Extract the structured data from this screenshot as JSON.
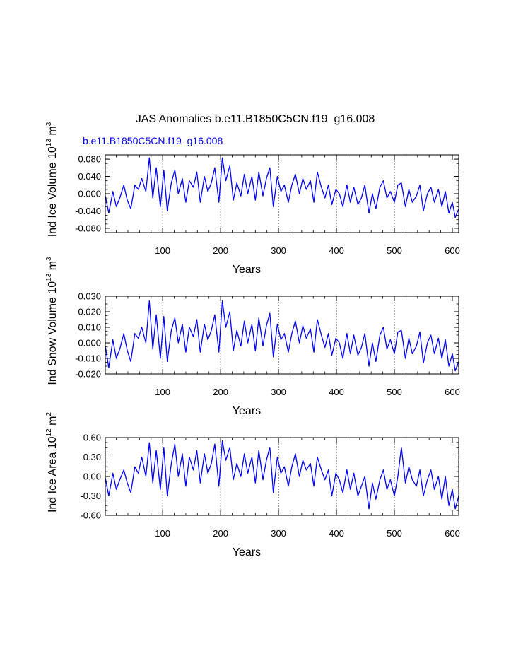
{
  "figure": {
    "title": "JAS Anomalies b.e11.B1850C5CN.f19_g16.008",
    "case_label": "b.e11.B1850C5CN.f19_g16.008",
    "line_color": "#0000ff",
    "grid_color": "#000000"
  },
  "chart_data": [
    {
      "type": "line",
      "name": "ice-volume",
      "title": "",
      "xlabel": "Years",
      "ylabel_base": "Ind Ice Volume 10",
      "ylabel_exp": "13",
      "ylabel_unit": " m",
      "ylabel_unit_exp": "3",
      "xlim": [
        1,
        611
      ],
      "ylim": [
        -0.09,
        0.09
      ],
      "xticks": [
        100,
        200,
        300,
        400,
        500,
        600
      ],
      "xtick_labels": [
        "100",
        "200",
        "300",
        "400",
        "500",
        "600"
      ],
      "yticks": [
        -0.08,
        -0.04,
        0.0,
        0.04,
        0.08
      ],
      "ytick_labels": [
        "-0.080",
        "-0.040",
        "0.000",
        "0.040",
        "0.080"
      ],
      "vgrid": [
        100,
        200,
        300,
        400,
        500
      ],
      "x": [
        1,
        7,
        14,
        20,
        26,
        33,
        39,
        45,
        52,
        58,
        64,
        71,
        77,
        83,
        89,
        96,
        102,
        108,
        115,
        121,
        127,
        134,
        140,
        146,
        153,
        159,
        165,
        172,
        178,
        184,
        190,
        197,
        203,
        209,
        216,
        222,
        228,
        235,
        241,
        247,
        254,
        260,
        266,
        273,
        279,
        285,
        291,
        298,
        304,
        310,
        317,
        323,
        329,
        336,
        342,
        348,
        355,
        361,
        367,
        374,
        380,
        386,
        392,
        399,
        405,
        411,
        418,
        424,
        430,
        437,
        443,
        449,
        456,
        462,
        468,
        475,
        481,
        487,
        493,
        500,
        506,
        512,
        519,
        525,
        531,
        538,
        544,
        550,
        557,
        563,
        569,
        576,
        582,
        588,
        594,
        600,
        605,
        611
      ],
      "values": [
        -0.005,
        -0.045,
        0.005,
        -0.03,
        -0.01,
        0.02,
        -0.015,
        -0.035,
        0.02,
        0.01,
        0.035,
        0.005,
        0.083,
        -0.01,
        0.06,
        -0.03,
        0.055,
        -0.04,
        0.025,
        0.055,
        0.0,
        0.035,
        -0.02,
        0.03,
        0.015,
        0.05,
        -0.02,
        0.04,
        0.005,
        0.025,
        0.06,
        -0.02,
        0.083,
        0.03,
        0.065,
        -0.015,
        0.025,
        -0.005,
        0.045,
        0.0,
        0.04,
        -0.015,
        0.05,
        -0.005,
        0.035,
        0.06,
        -0.03,
        0.04,
        0.005,
        0.02,
        -0.02,
        0.02,
        0.045,
        0.0,
        0.035,
        0.01,
        0.03,
        -0.02,
        0.05,
        0.015,
        -0.01,
        0.02,
        -0.025,
        0.01,
        0.0,
        -0.03,
        0.02,
        -0.02,
        0.015,
        -0.025,
        -0.01,
        0.02,
        -0.045,
        0.0,
        -0.035,
        0.015,
        0.03,
        -0.01,
        0.005,
        -0.02,
        0.02,
        0.025,
        -0.03,
        0.01,
        -0.02,
        -0.005,
        0.02,
        -0.04,
        0.0,
        0.015,
        -0.02,
        0.01,
        -0.03,
        0.005,
        -0.045,
        -0.02,
        -0.055,
        -0.035
      ]
    },
    {
      "type": "line",
      "name": "snow-volume",
      "title": "",
      "xlabel": "Years",
      "ylabel_base": "Ind Snow Volume 10",
      "ylabel_exp": "13",
      "ylabel_unit": " m",
      "ylabel_unit_exp": "3",
      "xlim": [
        1,
        611
      ],
      "ylim": [
        -0.02,
        0.03
      ],
      "xticks": [
        100,
        200,
        300,
        400,
        500,
        600
      ],
      "xtick_labels": [
        "100",
        "200",
        "300",
        "400",
        "500",
        "600"
      ],
      "yticks": [
        -0.02,
        -0.01,
        0.0,
        0.01,
        0.02,
        0.03
      ],
      "ytick_labels": [
        "-0.020",
        "-0.010",
        "0.000",
        "0.010",
        "0.020",
        "0.030"
      ],
      "vgrid": [
        100,
        200,
        300,
        400,
        500
      ],
      "x": [
        1,
        7,
        14,
        20,
        26,
        33,
        39,
        45,
        52,
        58,
        64,
        71,
        77,
        83,
        89,
        96,
        102,
        108,
        115,
        121,
        127,
        134,
        140,
        146,
        153,
        159,
        165,
        172,
        178,
        184,
        190,
        197,
        203,
        209,
        216,
        222,
        228,
        235,
        241,
        247,
        254,
        260,
        266,
        273,
        279,
        285,
        291,
        298,
        304,
        310,
        317,
        323,
        329,
        336,
        342,
        348,
        355,
        361,
        367,
        374,
        380,
        386,
        392,
        399,
        405,
        411,
        418,
        424,
        430,
        437,
        443,
        449,
        456,
        462,
        468,
        475,
        481,
        487,
        493,
        500,
        506,
        512,
        519,
        525,
        531,
        538,
        544,
        550,
        557,
        563,
        569,
        576,
        582,
        588,
        594,
        600,
        605,
        611
      ],
      "values": [
        -0.002,
        -0.016,
        0.002,
        -0.01,
        -0.004,
        0.006,
        -0.005,
        -0.012,
        0.006,
        0.003,
        0.01,
        0.0,
        0.027,
        -0.004,
        0.018,
        -0.01,
        0.017,
        -0.012,
        0.008,
        0.016,
        0.0,
        0.012,
        -0.006,
        0.01,
        0.004,
        0.015,
        -0.006,
        0.012,
        0.002,
        0.008,
        0.018,
        -0.006,
        0.027,
        0.01,
        0.02,
        -0.005,
        0.008,
        -0.002,
        0.014,
        0.0,
        0.012,
        -0.005,
        0.016,
        -0.002,
        0.011,
        0.019,
        -0.009,
        0.012,
        0.002,
        0.006,
        -0.006,
        0.006,
        0.014,
        0.0,
        0.011,
        0.003,
        0.009,
        -0.006,
        0.015,
        0.005,
        -0.003,
        0.006,
        -0.008,
        0.003,
        0.0,
        -0.01,
        0.006,
        -0.007,
        0.005,
        -0.008,
        -0.003,
        0.006,
        -0.015,
        0.0,
        -0.012,
        0.005,
        0.01,
        -0.004,
        0.002,
        -0.007,
        0.007,
        0.008,
        -0.01,
        0.003,
        -0.007,
        -0.002,
        0.007,
        -0.013,
        0.0,
        0.005,
        -0.007,
        0.003,
        -0.01,
        0.002,
        -0.015,
        -0.007,
        -0.018,
        -0.012
      ]
    },
    {
      "type": "line",
      "name": "ice-area",
      "title": "",
      "xlabel": "Years",
      "ylabel_base": "Ind Ice Area 10",
      "ylabel_exp": "12",
      "ylabel_unit": " m",
      "ylabel_unit_exp": "2",
      "xlim": [
        1,
        611
      ],
      "ylim": [
        -0.6,
        0.6
      ],
      "xticks": [
        100,
        200,
        300,
        400,
        500,
        600
      ],
      "xtick_labels": [
        "100",
        "200",
        "300",
        "400",
        "500",
        "600"
      ],
      "yticks": [
        -0.6,
        -0.3,
        0.0,
        0.3,
        0.6
      ],
      "ytick_labels": [
        "-0.60",
        "-0.30",
        "0.00",
        "0.30",
        "0.60"
      ],
      "vgrid": [
        100,
        200,
        300,
        400,
        500
      ],
      "x": [
        1,
        7,
        14,
        20,
        26,
        33,
        39,
        45,
        52,
        58,
        64,
        71,
        77,
        83,
        89,
        96,
        102,
        108,
        115,
        121,
        127,
        134,
        140,
        146,
        153,
        159,
        165,
        172,
        178,
        184,
        190,
        197,
        203,
        209,
        216,
        222,
        228,
        235,
        241,
        247,
        254,
        260,
        266,
        273,
        279,
        285,
        291,
        298,
        304,
        310,
        317,
        323,
        329,
        336,
        342,
        348,
        355,
        361,
        367,
        374,
        380,
        386,
        392,
        399,
        405,
        411,
        418,
        424,
        430,
        437,
        443,
        449,
        456,
        462,
        468,
        475,
        481,
        487,
        493,
        500,
        506,
        512,
        519,
        525,
        531,
        538,
        544,
        550,
        557,
        563,
        569,
        576,
        582,
        588,
        594,
        600,
        605,
        611
      ],
      "values": [
        -0.02,
        -0.3,
        0.05,
        -0.2,
        -0.05,
        0.1,
        -0.1,
        -0.25,
        0.15,
        0.05,
        0.3,
        0.0,
        0.52,
        -0.1,
        0.4,
        -0.2,
        0.45,
        -0.3,
        0.2,
        0.5,
        0.0,
        0.35,
        -0.15,
        0.3,
        0.1,
        0.4,
        -0.1,
        0.35,
        0.05,
        0.2,
        0.5,
        -0.15,
        0.55,
        0.25,
        0.45,
        -0.05,
        0.2,
        0.0,
        0.35,
        0.05,
        0.3,
        -0.1,
        0.4,
        -0.05,
        0.25,
        0.45,
        -0.25,
        0.3,
        0.05,
        0.15,
        -0.15,
        0.15,
        0.35,
        0.0,
        0.25,
        0.1,
        0.2,
        -0.15,
        0.3,
        0.1,
        -0.05,
        0.1,
        -0.3,
        0.05,
        -0.05,
        -0.25,
        0.1,
        -0.2,
        0.05,
        -0.3,
        -0.15,
        0.0,
        -0.5,
        -0.1,
        -0.35,
        -0.05,
        0.1,
        -0.2,
        -0.05,
        -0.3,
        0.0,
        0.45,
        -0.1,
        0.15,
        -0.05,
        -0.15,
        0.1,
        -0.3,
        -0.05,
        0.1,
        -0.2,
        0.0,
        -0.35,
        0.0,
        -0.45,
        -0.2,
        -0.5,
        -0.3
      ]
    }
  ]
}
